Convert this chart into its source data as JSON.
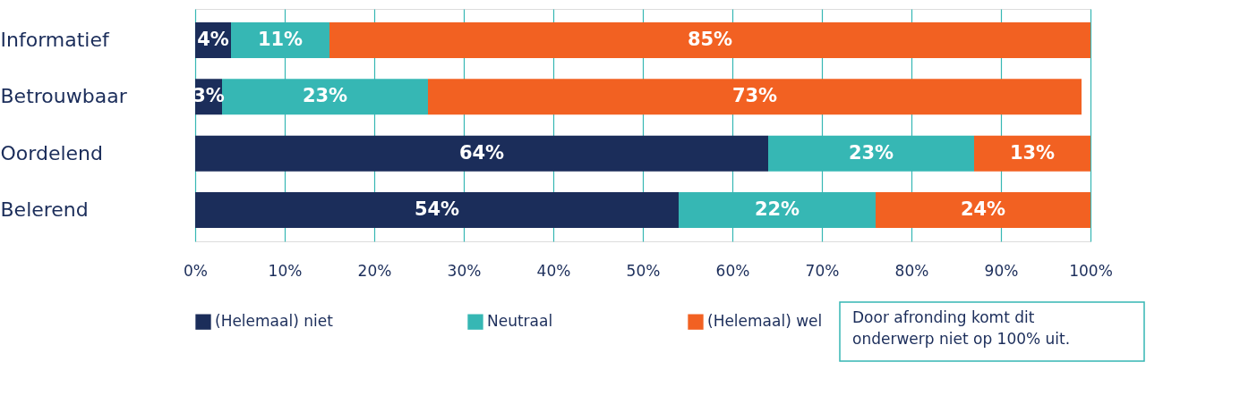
{
  "chart_data": {
    "type": "bar",
    "orientation": "horizontal",
    "stacked": true,
    "categories": [
      "Informatief",
      "Betrouwbaar",
      "Oordelend",
      "Belerend"
    ],
    "series": [
      {
        "name": "(Helemaal) niet",
        "color": "#1b2d5a",
        "values": [
          4,
          3,
          64,
          54
        ],
        "value_labels": [
          "4%",
          "3%",
          "64%",
          "54%"
        ]
      },
      {
        "name": "Neutraal",
        "color": "#36b7b4",
        "values": [
          11,
          23,
          23,
          22
        ],
        "value_labels": [
          "11%",
          "23%",
          "23%",
          "22%"
        ]
      },
      {
        "name": "(Helemaal) wel",
        "color": "#f26122",
        "values": [
          85,
          73,
          13,
          24
        ],
        "value_labels": [
          "85%",
          "73%",
          "13%",
          "24%"
        ]
      }
    ],
    "xlim": [
      0,
      100
    ],
    "xticks": [
      {
        "value": 0,
        "label": "0%"
      },
      {
        "value": 10,
        "label": "10%"
      },
      {
        "value": 20,
        "label": "20%"
      },
      {
        "value": 30,
        "label": "30%"
      },
      {
        "value": 40,
        "label": "40%"
      },
      {
        "value": 50,
        "label": "50%"
      },
      {
        "value": 60,
        "label": "60%"
      },
      {
        "value": 70,
        "label": "70%"
      },
      {
        "value": 80,
        "label": "80%"
      },
      {
        "value": 90,
        "label": "90%"
      },
      {
        "value": 100,
        "label": "100%"
      }
    ],
    "grid": "x",
    "legend": "bottom",
    "annotations": [
      "Door afronding komt dit onderwerp niet op 100% uit."
    ]
  }
}
